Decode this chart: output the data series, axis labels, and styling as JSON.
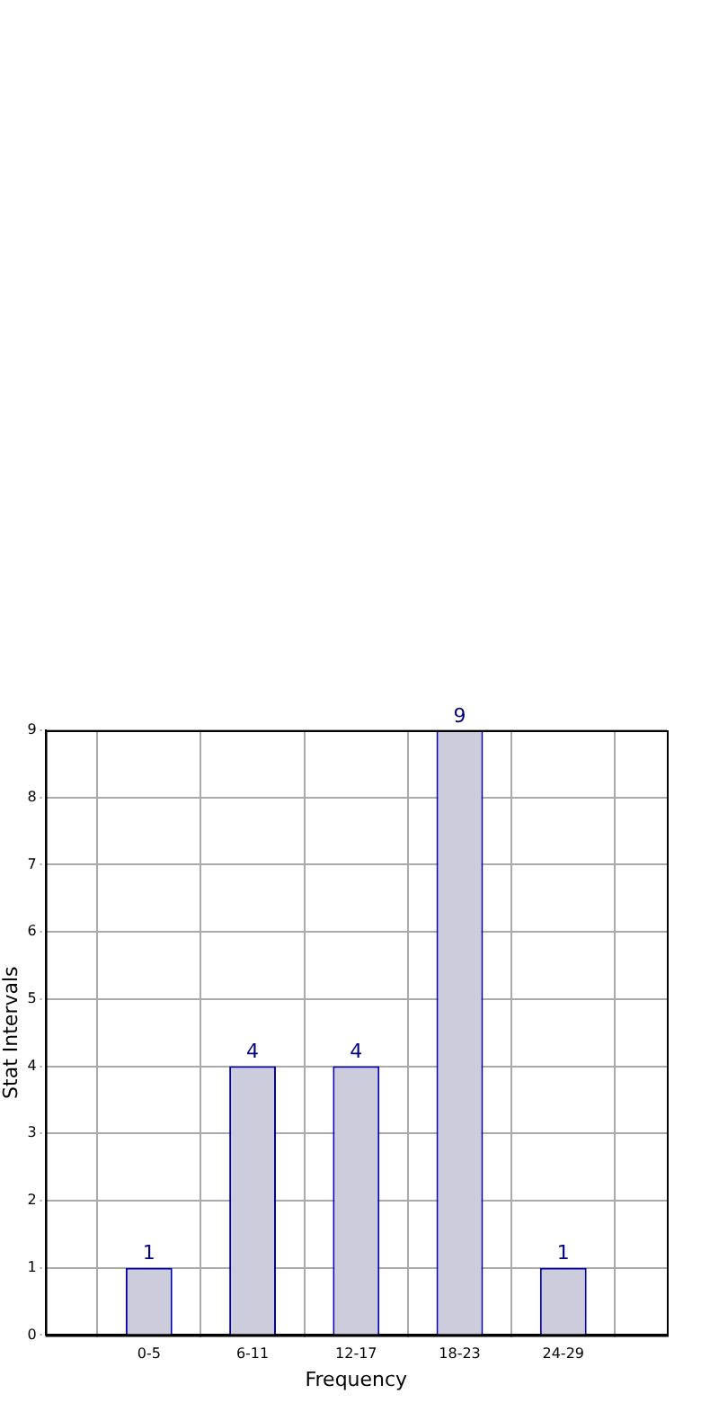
{
  "chart_data": {
    "type": "bar",
    "xlabel": "Frequency",
    "ylabel": "Stat Intervals",
    "categories": [
      "0-5",
      "6-11",
      "12-17",
      "18-23",
      "24-29"
    ],
    "values": [
      1,
      4,
      4,
      9,
      1
    ],
    "color": "#ccccdd",
    "ylim": [
      0,
      9
    ],
    "yticks": [
      0,
      1,
      2,
      3,
      4,
      5,
      6,
      7,
      8,
      9
    ],
    "grid": true,
    "data_labels": true,
    "legend": false
  }
}
